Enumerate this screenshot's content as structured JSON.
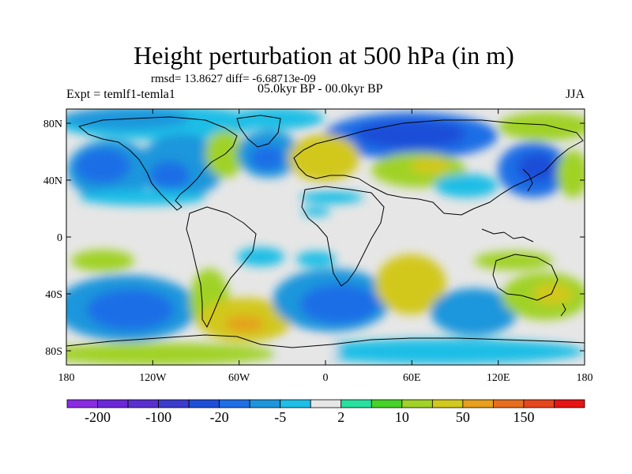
{
  "header": {
    "title": "Height perturbation at 500 hPa (in m)",
    "stats": "rmsd= 13.8627 diff= -6.68713e-09",
    "experiment": "Expt = temlf1-temla1",
    "period": "05.0kyr BP - 00.0kyr BP",
    "season": "JJA"
  },
  "map": {
    "projection": "cylindrical equidistant",
    "lon_range": [
      -180,
      180
    ],
    "lat_range": [
      -90,
      90
    ],
    "lat_tick_labels": [
      {
        "lat": 80,
        "label": "80N"
      },
      {
        "lat": 40,
        "label": "40N"
      },
      {
        "lat": 0,
        "label": "0"
      },
      {
        "lat": -40,
        "label": "40S"
      },
      {
        "lat": -80,
        "label": "80S"
      }
    ],
    "lon_tick_labels": [
      {
        "lon": -180,
        "label": "180"
      },
      {
        "lon": -120,
        "label": "120W"
      },
      {
        "lon": -60,
        "label": "60W"
      },
      {
        "lon": 0,
        "label": "0"
      },
      {
        "lon": 60,
        "label": "60E"
      },
      {
        "lon": 120,
        "label": "120E"
      },
      {
        "lon": 180,
        "label": "180"
      }
    ],
    "colors": {
      "neutral": "#e6e6e6",
      "land_outline": "#000000"
    }
  },
  "colorbar": {
    "colors": [
      "#8a2be2",
      "#6a28d8",
      "#5a2fd0",
      "#3c3ccd",
      "#1e4ed8",
      "#1e6ee6",
      "#1e96dc",
      "#1ebee6",
      "#e6e6e6",
      "#28e0a0",
      "#46d228",
      "#a0d228",
      "#d2c81e",
      "#e6a01e",
      "#e66e1e",
      "#e6461e",
      "#e61414"
    ],
    "labels": [
      {
        "index": 1,
        "text": "-200"
      },
      {
        "index": 3,
        "text": "-100"
      },
      {
        "index": 5,
        "text": "-20"
      },
      {
        "index": 7,
        "text": "-5"
      },
      {
        "index": 9,
        "text": "2"
      },
      {
        "index": 11,
        "text": "10"
      },
      {
        "index": 13,
        "text": "50"
      },
      {
        "index": 15,
        "text": "150"
      }
    ]
  }
}
